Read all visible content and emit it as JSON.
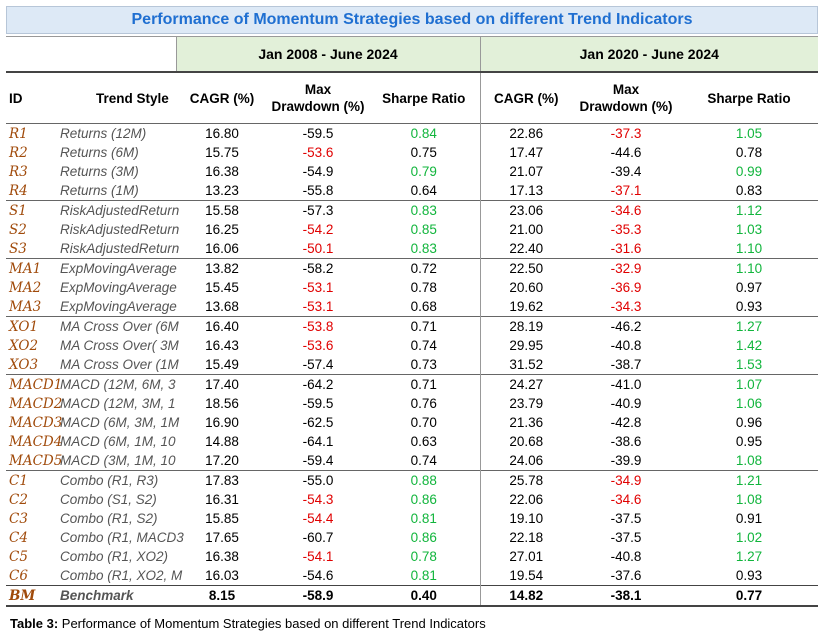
{
  "title": "Performance of Momentum Strategies based on different Trend Indicators",
  "periods": [
    "Jan 2008 - June 2024",
    "Jan 2020 - June 2024"
  ],
  "headers": {
    "id": "ID",
    "style": "Trend Style",
    "cagr": "CAGR (%)",
    "maxdd_line1": "Max",
    "maxdd_line2": "Drawdown (%)",
    "sharpe": "Sharpe Ratio"
  },
  "colors": {
    "negative": "#e00000",
    "positive": "#11b53c",
    "id": "#a04a0a",
    "title": "#1f6fd1"
  },
  "rows": [
    {
      "id": "R1",
      "style": "Returns (12M)",
      "c1": "16.80",
      "d1": "-59.5",
      "s1": "0.84",
      "c2": "22.86",
      "d2": "-37.3",
      "s2": "1.05",
      "d1c": "",
      "s1c": "green",
      "d2c": "red",
      "s2c": "green",
      "grp": true
    },
    {
      "id": "R2",
      "style": "Returns (6M)",
      "c1": "15.75",
      "d1": "-53.6",
      "s1": "0.75",
      "c2": "17.47",
      "d2": "-44.6",
      "s2": "0.78",
      "d1c": "red",
      "s1c": "",
      "d2c": "",
      "s2c": ""
    },
    {
      "id": "R3",
      "style": "Returns (3M)",
      "c1": "16.38",
      "d1": "-54.9",
      "s1": "0.79",
      "c2": "21.07",
      "d2": "-39.4",
      "s2": "0.99",
      "d1c": "",
      "s1c": "green",
      "d2c": "",
      "s2c": "green"
    },
    {
      "id": "R4",
      "style": "Returns (1M)",
      "c1": "13.23",
      "d1": "-55.8",
      "s1": "0.64",
      "c2": "17.13",
      "d2": "-37.1",
      "s2": "0.83",
      "d1c": "",
      "s1c": "",
      "d2c": "red",
      "s2c": ""
    },
    {
      "id": "S1",
      "style": "RiskAdjustedReturn",
      "c1": "15.58",
      "d1": "-57.3",
      "s1": "0.83",
      "c2": "23.06",
      "d2": "-34.6",
      "s2": "1.12",
      "d1c": "",
      "s1c": "green",
      "d2c": "red",
      "s2c": "green",
      "grp": true
    },
    {
      "id": "S2",
      "style": "RiskAdjustedReturn",
      "c1": "16.25",
      "d1": "-54.2",
      "s1": "0.85",
      "c2": "21.00",
      "d2": "-35.3",
      "s2": "1.03",
      "d1c": "red",
      "s1c": "green",
      "d2c": "red",
      "s2c": "green"
    },
    {
      "id": "S3",
      "style": "RiskAdjustedReturn",
      "c1": "16.06",
      "d1": "-50.1",
      "s1": "0.83",
      "c2": "22.40",
      "d2": "-31.6",
      "s2": "1.10",
      "d1c": "red",
      "s1c": "green",
      "d2c": "red",
      "s2c": "green"
    },
    {
      "id": "MA1",
      "style": "ExpMovingAverage",
      "c1": "13.82",
      "d1": "-58.2",
      "s1": "0.72",
      "c2": "22.50",
      "d2": "-32.9",
      "s2": "1.10",
      "d1c": "",
      "s1c": "",
      "d2c": "red",
      "s2c": "green",
      "grp": true
    },
    {
      "id": "MA2",
      "style": "ExpMovingAverage",
      "c1": "15.45",
      "d1": "-53.1",
      "s1": "0.78",
      "c2": "20.60",
      "d2": "-36.9",
      "s2": "0.97",
      "d1c": "red",
      "s1c": "",
      "d2c": "red",
      "s2c": ""
    },
    {
      "id": "MA3",
      "style": "ExpMovingAverage",
      "c1": "13.68",
      "d1": "-53.1",
      "s1": "0.68",
      "c2": "19.62",
      "d2": "-34.3",
      "s2": "0.93",
      "d1c": "red",
      "s1c": "",
      "d2c": "red",
      "s2c": ""
    },
    {
      "id": "XO1",
      "style": "MA Cross Over (6M",
      "c1": "16.40",
      "d1": "-53.8",
      "s1": "0.71",
      "c2": "28.19",
      "d2": "-46.2",
      "s2": "1.27",
      "d1c": "red",
      "s1c": "",
      "d2c": "",
      "s2c": "green",
      "grp": true
    },
    {
      "id": "XO2",
      "style": "MA Cross Over( 3M",
      "c1": "16.43",
      "d1": "-53.6",
      "s1": "0.74",
      "c2": "29.95",
      "d2": "-40.8",
      "s2": "1.42",
      "d1c": "red",
      "s1c": "",
      "d2c": "",
      "s2c": "green"
    },
    {
      "id": "XO3",
      "style": "MA Cross Over (1M",
      "c1": "15.49",
      "d1": "-57.4",
      "s1": "0.73",
      "c2": "31.52",
      "d2": "-38.7",
      "s2": "1.53",
      "d1c": "",
      "s1c": "",
      "d2c": "",
      "s2c": "green"
    },
    {
      "id": "MACD1",
      "style": "MACD (12M, 6M, 3",
      "c1": "17.40",
      "d1": "-64.2",
      "s1": "0.71",
      "c2": "24.27",
      "d2": "-41.0",
      "s2": "1.07",
      "d1c": "",
      "s1c": "",
      "d2c": "",
      "s2c": "green",
      "grp": true
    },
    {
      "id": "MACD2",
      "style": "MACD (12M, 3M, 1",
      "c1": "18.56",
      "d1": "-59.5",
      "s1": "0.76",
      "c2": "23.79",
      "d2": "-40.9",
      "s2": "1.06",
      "d1c": "",
      "s1c": "",
      "d2c": "",
      "s2c": "green"
    },
    {
      "id": "MACD3",
      "style": "MACD (6M, 3M, 1M",
      "c1": "16.90",
      "d1": "-62.5",
      "s1": "0.70",
      "c2": "21.36",
      "d2": "-42.8",
      "s2": "0.96",
      "d1c": "",
      "s1c": "",
      "d2c": "",
      "s2c": ""
    },
    {
      "id": "MACD4",
      "style": "MACD (6M, 1M, 10",
      "c1": "14.88",
      "d1": "-64.1",
      "s1": "0.63",
      "c2": "20.68",
      "d2": "-38.6",
      "s2": "0.95",
      "d1c": "",
      "s1c": "",
      "d2c": "",
      "s2c": ""
    },
    {
      "id": "MACD5",
      "style": "MACD (3M, 1M, 10",
      "c1": "17.20",
      "d1": "-59.4",
      "s1": "0.74",
      "c2": "24.06",
      "d2": "-39.9",
      "s2": "1.08",
      "d1c": "",
      "s1c": "",
      "d2c": "",
      "s2c": "green"
    },
    {
      "id": "C1",
      "style": "Combo (R1, R3)",
      "c1": "17.83",
      "d1": "-55.0",
      "s1": "0.88",
      "c2": "25.78",
      "d2": "-34.9",
      "s2": "1.21",
      "d1c": "",
      "s1c": "green",
      "d2c": "red",
      "s2c": "green",
      "grp": true
    },
    {
      "id": "C2",
      "style": "Combo (S1, S2)",
      "c1": "16.31",
      "d1": "-54.3",
      "s1": "0.86",
      "c2": "22.06",
      "d2": "-34.6",
      "s2": "1.08",
      "d1c": "red",
      "s1c": "green",
      "d2c": "red",
      "s2c": "green"
    },
    {
      "id": "C3",
      "style": "Combo (R1, S2)",
      "c1": "15.85",
      "d1": "-54.4",
      "s1": "0.81",
      "c2": "19.10",
      "d2": "-37.5",
      "s2": "0.91",
      "d1c": "red",
      "s1c": "green",
      "d2c": "",
      "s2c": ""
    },
    {
      "id": "C4",
      "style": "Combo (R1, MACD3",
      "c1": "17.65",
      "d1": "-60.7",
      "s1": "0.86",
      "c2": "22.18",
      "d2": "-37.5",
      "s2": "1.02",
      "d1c": "",
      "s1c": "green",
      "d2c": "",
      "s2c": "green"
    },
    {
      "id": "C5",
      "style": "Combo (R1, XO2)",
      "c1": "16.38",
      "d1": "-54.1",
      "s1": "0.78",
      "c2": "27.01",
      "d2": "-40.8",
      "s2": "1.27",
      "d1c": "red",
      "s1c": "green",
      "d2c": "",
      "s2c": "green"
    },
    {
      "id": "C6",
      "style": "Combo (R1, XO2, M",
      "c1": "16.03",
      "d1": "-54.6",
      "s1": "0.81",
      "c2": "19.54",
      "d2": "-37.6",
      "s2": "0.93",
      "d1c": "",
      "s1c": "green",
      "d2c": "",
      "s2c": ""
    }
  ],
  "benchmark": {
    "id": "BM",
    "style": "Benchmark",
    "c1": "8.15",
    "d1": "-58.9",
    "s1": "0.40",
    "c2": "14.82",
    "d2": "-38.1",
    "s2": "0.77"
  },
  "caption": {
    "label": "Table 3:",
    "text": " Performance of Momentum Strategies based on different Trend Indicators"
  }
}
